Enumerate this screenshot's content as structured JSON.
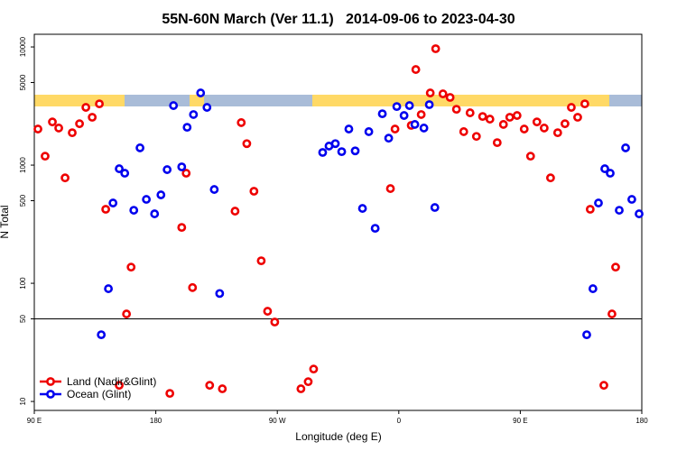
{
  "chart_data": {
    "type": "scatter",
    "title": "55N-60N March (Ver 11.1)   2014-09-06 to 2023-04-30",
    "xlabel": "Longitude (deg E)",
    "ylabel": "N Total",
    "xlim": [
      90,
      540
    ],
    "ylim": [
      8.4,
      12800
    ],
    "log_y": true,
    "hline": 50,
    "xticks": [
      {
        "value": 90,
        "label": "90 E"
      },
      {
        "value": 180,
        "label": "180"
      },
      {
        "value": 270,
        "label": "90 W"
      },
      {
        "value": 360,
        "label": "0"
      },
      {
        "value": 450,
        "label": "90 E"
      },
      {
        "value": 540,
        "label": "180"
      }
    ],
    "yticks": [
      10,
      50,
      100,
      500,
      1000,
      5000,
      10000
    ],
    "legend": "lower left",
    "series": [
      {
        "name": "Land (Nadir&Glint)",
        "color": "#ee0000",
        "x": [
          92.7,
          98.0,
          103.4,
          108.1,
          112.8,
          118.1,
          123.5,
          128.2,
          132.9,
          138.2,
          142.9,
          152.9,
          158.3,
          161.7,
          190.4,
          199.2,
          202.5,
          207.2,
          219.9,
          229.3,
          238.7,
          243.3,
          247.4,
          252.7,
          258.1,
          262.8,
          268.1,
          287.5,
          292.9,
          296.9,
          353.8,
          357.2,
          369.2,
          372.6,
          376.6,
          383.3,
          387.3,
          392.7,
          398.0,
          402.7,
          408.1,
          412.8,
          417.5,
          422.1,
          427.5,
          432.9,
          437.5,
          442.2,
          447.6,
          452.9,
          457.6,
          462.3,
          467.7,
          472.4,
          477.7,
          483.1,
          487.8,
          492.5,
          497.8,
          501.8,
          511.9,
          517.9,
          520.6
        ],
        "values": [
          2020,
          1190,
          2320,
          2060,
          780,
          1880,
          2240,
          3080,
          2540,
          3300,
          423,
          13.7,
          55,
          137,
          11.7,
          297,
          854,
          92,
          13.7,
          12.8,
          408,
          2290,
          1520,
          601,
          155,
          58,
          47,
          12.8,
          14.7,
          18.8,
          633,
          2020,
          2170,
          6440,
          2680,
          4080,
          9660,
          4010,
          3740,
          2970,
          1920,
          2770,
          1750,
          2580,
          2450,
          1550,
          2210,
          2540,
          2630,
          2020,
          1190,
          2320,
          2060,
          780,
          1880,
          2240,
          3080,
          2540,
          3300,
          423,
          13.7,
          55,
          137
        ]
      },
      {
        "name": "Ocean (Glint)",
        "color": "#0000ee",
        "x": [
          139.6,
          144.9,
          148.3,
          152.9,
          157.0,
          163.7,
          168.3,
          173.0,
          179.1,
          183.8,
          188.4,
          193.1,
          199.2,
          203.2,
          207.9,
          213.2,
          217.9,
          223.3,
          227.3,
          303.6,
          308.3,
          313.0,
          317.7,
          323.0,
          327.7,
          333.1,
          337.8,
          342.5,
          347.8,
          352.5,
          358.5,
          363.9,
          367.9,
          371.9,
          378.6,
          382.6,
          386.7,
          499.2,
          503.8,
          507.9,
          512.6,
          516.6,
          523.3,
          528.0,
          532.6,
          538.0
        ],
        "values": [
          36.7,
          90,
          478,
          932,
          854,
          415,
          1400,
          513,
          387,
          560,
          916,
          3190,
          966,
          2090,
          2680,
          4080,
          3080,
          622,
          82,
          1280,
          1450,
          1520,
          1300,
          2020,
          1320,
          430,
          1920,
          292,
          2720,
          1690,
          3130,
          2630,
          3190,
          2210,
          2060,
          3250,
          438,
          36.7,
          90,
          478,
          932,
          854,
          415,
          1400,
          513,
          387
        ]
      }
    ]
  }
}
